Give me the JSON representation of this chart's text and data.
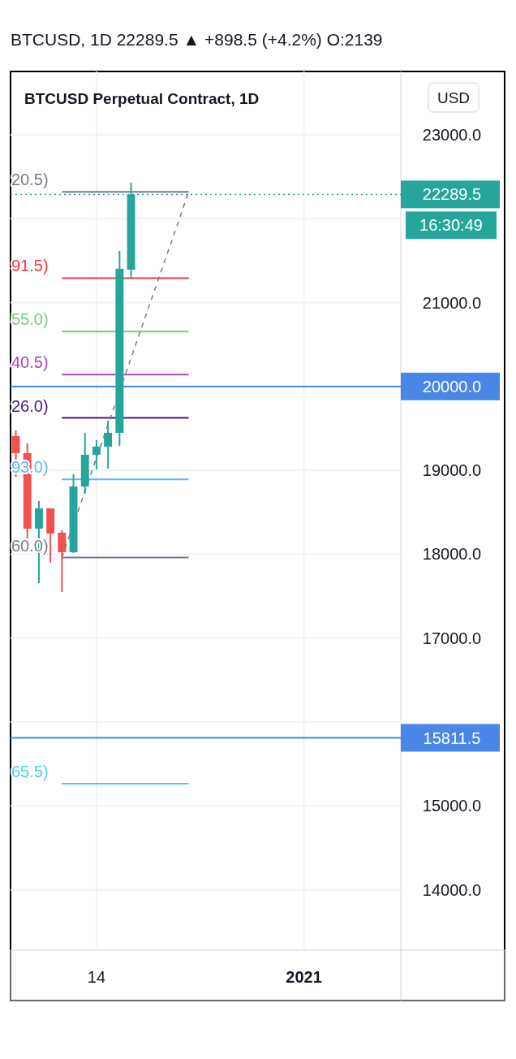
{
  "chart_data": {
    "type": "candlestick",
    "title": "BTCUSD Perpetual Contract, 1D",
    "subtitle": "BTCUSD, 1D  22289.5 ▲ +898.5 (+4.2%) O:2139",
    "annotations": [
      "16:30:49",
      "USD"
    ],
    "x": [
      "2020-12-07",
      "2020-12-08",
      "2020-12-09",
      "2020-12-10",
      "2020-12-11",
      "2020-12-12",
      "2020-12-13",
      "2020-12-14",
      "2020-12-15",
      "2020-12-16",
      "2020-12-17"
    ],
    "ohlc": [
      [
        19409,
        19476,
        18924,
        19205
      ],
      [
        19205,
        19321,
        18189,
        18305
      ],
      [
        18305,
        18634,
        17656,
        18547
      ],
      [
        18547,
        18547,
        17898,
        18247
      ],
      [
        18257,
        18286,
        17550,
        18024
      ],
      [
        18024,
        18954,
        18015,
        18808
      ],
      [
        18808,
        19447,
        18721,
        19186
      ],
      [
        19186,
        19360,
        19012,
        19283
      ],
      [
        19283,
        19593,
        19021,
        19447
      ],
      [
        19447,
        21616,
        19292,
        21403
      ],
      [
        21393,
        22429,
        21287,
        22289.5
      ]
    ],
    "colors": [
      "#ef5350",
      "#ef5350",
      "#26a69a",
      "#ef5350",
      "#ef5350",
      "#26a69a",
      "#26a69a",
      "#26a69a",
      "#26a69a",
      "#26a69a",
      "#26a69a"
    ],
    "series": [
      {
        "type": "line",
        "name": "20.5)",
        "color": "#787b86",
        "x": [
          "2020-12-11",
          "2020-12-22"
        ],
        "values": [
          22320.5,
          22320.5
        ]
      },
      {
        "type": "line",
        "name": "91.5)",
        "color": "#f23645",
        "x": [
          "2020-12-11",
          "2020-12-22"
        ],
        "values": [
          21291.5,
          21291.5
        ]
      },
      {
        "type": "line",
        "name": "55.0)",
        "color": "#81c784",
        "x": [
          "2020-12-11",
          "2020-12-22"
        ],
        "values": [
          20655.0,
          20655.0
        ]
      },
      {
        "type": "line",
        "name": "40.5)",
        "color": "#ab47bc",
        "x": [
          "2020-12-11",
          "2020-12-22"
        ],
        "values": [
          20140.5,
          20140.5
        ]
      },
      {
        "type": "line",
        "name": "26.0)",
        "color": "#4a148c",
        "x": [
          "2020-12-11",
          "2020-12-22"
        ],
        "values": [
          19626.0,
          19626.0
        ]
      },
      {
        "type": "line",
        "name": "93.0)",
        "color": "#64b5f6",
        "x": [
          "2020-12-11",
          "2020-12-22"
        ],
        "values": [
          18893.0,
          18893.0
        ]
      },
      {
        "type": "line",
        "name": "60.0)",
        "color": "#787b86",
        "x": [
          "2020-12-11",
          "2020-12-22"
        ],
        "values": [
          17960.0,
          17960.0
        ]
      },
      {
        "type": "line",
        "name": "65.5)",
        "color": "#4dd0e1",
        "x": [
          "2020-12-11",
          "2020-12-22"
        ],
        "values": [
          15265.5,
          15265.5
        ]
      },
      {
        "type": "line",
        "color": "#787b86",
        "line_style": "dashed",
        "x": [
          "2020-12-11",
          "2020-12-22"
        ],
        "values": [
          17960.0,
          22320.5
        ]
      }
    ],
    "ref_lines": [
      {
        "axis": "y",
        "value": 20000,
        "label": "20000.0",
        "color": "#4a86e8"
      },
      {
        "axis": "y",
        "value": 15811.5,
        "label": "15811.5",
        "color": "#4a86e8"
      },
      {
        "axis": "y",
        "value": 22289.5,
        "label": "22289.5",
        "color": "#26a69a",
        "line_style": "dotted"
      }
    ],
    "xlim": [
      "2020-12-06T13:00",
      "2021-01-18T10:00"
    ],
    "xticks": [
      {
        "value": "2020-12-14",
        "label": "14"
      },
      {
        "value": "2021-01-01",
        "label": "2021"
      }
    ],
    "ylim": [
      12680,
      23755
    ],
    "yticks": [
      {
        "value": 14000,
        "label": "14000.0"
      },
      {
        "value": 15000,
        "label": "15000.0"
      },
      {
        "value": 16000,
        "label": null
      },
      {
        "value": 17000,
        "label": "17000.0"
      },
      {
        "value": 18000,
        "label": "18000.0"
      },
      {
        "value": 19000,
        "label": "19000.0"
      },
      {
        "value": 20000,
        "label": null
      },
      {
        "value": 21000,
        "label": "21000.0"
      },
      {
        "value": 22000,
        "label": null
      },
      {
        "value": 23000,
        "label": "23000.0"
      }
    ],
    "grid": true,
    "legend": false
  }
}
